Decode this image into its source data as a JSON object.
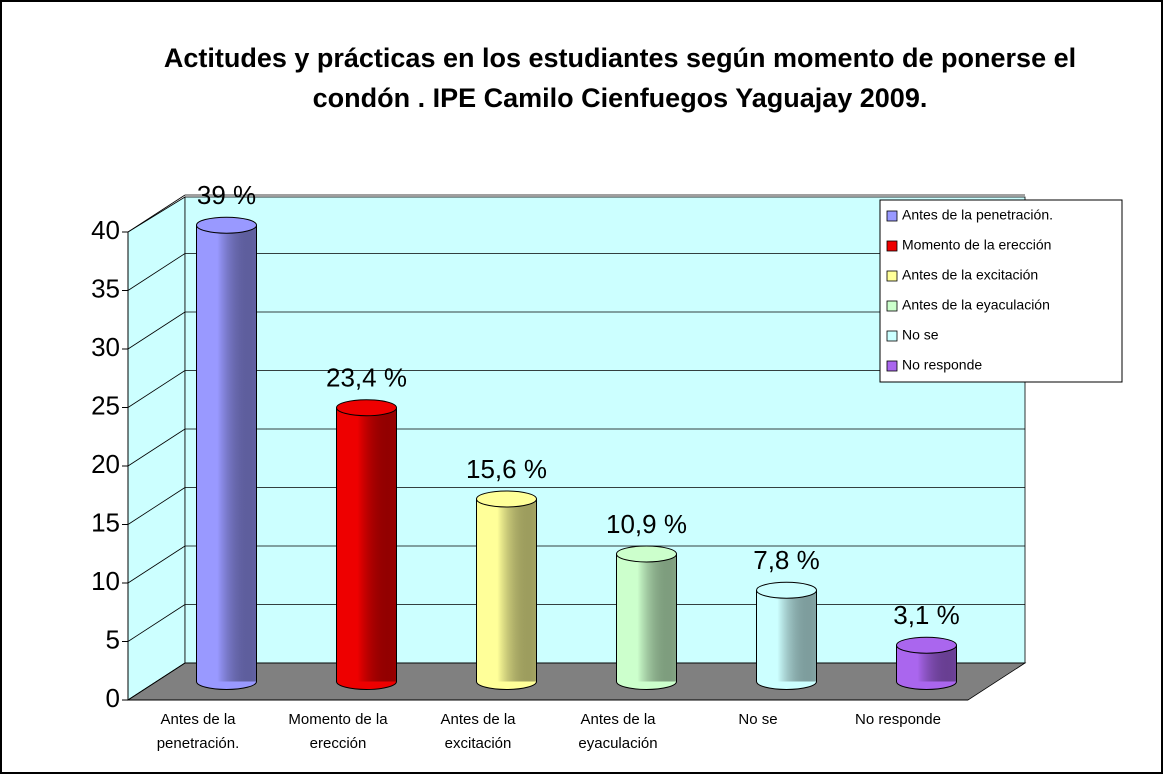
{
  "chart_data": {
    "type": "bar3d",
    "title": "Actitudes y prácticas en los estudiantes según momento de ponerse el condón . IPE Camilo Cienfuegos Yaguajay 2009.",
    "categories": [
      "Antes de la penetración.",
      "Momento de la erección",
      "Antes de la excitación",
      "Antes de la eyaculación",
      "No se",
      "No responde"
    ],
    "values": [
      39,
      23.4,
      15.6,
      10.9,
      7.8,
      3.1
    ],
    "value_labels": [
      "39 %",
      "23,4 %",
      "15,6 %",
      "10,9 %",
      "7,8 %",
      "3,1 %"
    ],
    "colors": [
      "#9999ff",
      "#ee0000",
      "#ffff99",
      "#ccffcc",
      "#ccffff",
      "#aa66ee"
    ],
    "ylim": [
      0,
      40
    ],
    "yticks": [
      0,
      5,
      10,
      15,
      20,
      25,
      30,
      35,
      40
    ],
    "grid": true,
    "legend": "upper right"
  }
}
